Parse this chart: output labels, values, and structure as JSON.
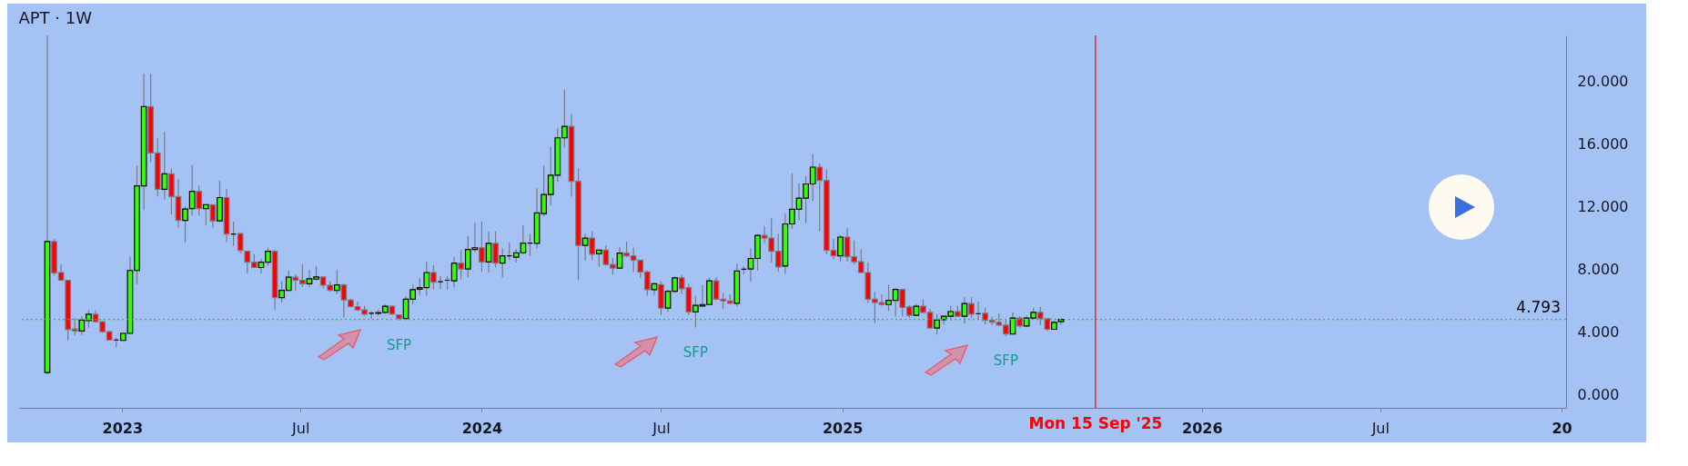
{
  "chart_data": {
    "type": "candlestick",
    "title": "APT · 1W",
    "x": [
      "2022-10-17",
      "2022-10-24",
      "2022-10-31",
      "2022-11-07",
      "2022-11-14",
      "2022-11-21",
      "2022-11-28",
      "2022-12-05",
      "2022-12-12",
      "2022-12-19",
      "2022-12-26",
      "2023-01-02",
      "2023-01-09",
      "2023-01-16",
      "2023-01-23",
      "2023-01-30",
      "2023-02-06",
      "2023-02-13",
      "2023-02-20",
      "2023-02-27",
      "2023-03-06",
      "2023-03-13",
      "2023-03-20",
      "2023-03-27",
      "2023-04-03",
      "2023-04-10",
      "2023-04-17",
      "2023-04-24",
      "2023-05-01",
      "2023-05-08",
      "2023-05-15",
      "2023-05-22",
      "2023-05-29",
      "2023-06-05",
      "2023-06-12",
      "2023-06-19",
      "2023-06-26",
      "2023-07-03",
      "2023-07-10",
      "2023-07-17",
      "2023-07-24",
      "2023-07-31",
      "2023-08-07",
      "2023-08-14",
      "2023-08-21",
      "2023-08-28",
      "2023-09-04",
      "2023-09-11",
      "2023-09-18",
      "2023-09-25",
      "2023-10-02",
      "2023-10-09",
      "2023-10-16",
      "2023-10-23",
      "2023-10-30",
      "2023-11-06",
      "2023-11-13",
      "2023-11-20",
      "2023-11-27",
      "2023-12-04",
      "2023-12-11",
      "2023-12-18",
      "2023-12-25",
      "2024-01-01",
      "2024-01-08",
      "2024-01-15",
      "2024-01-22",
      "2024-01-29",
      "2024-02-05",
      "2024-02-12",
      "2024-02-19",
      "2024-02-26",
      "2024-03-04",
      "2024-03-11",
      "2024-03-18",
      "2024-03-25",
      "2024-04-01",
      "2024-04-08",
      "2024-04-15",
      "2024-04-22",
      "2024-04-29",
      "2024-05-06",
      "2024-05-13",
      "2024-05-20",
      "2024-05-27",
      "2024-06-03",
      "2024-06-10",
      "2024-06-17",
      "2024-06-24",
      "2024-07-01",
      "2024-07-08",
      "2024-07-15",
      "2024-07-22",
      "2024-07-29",
      "2024-08-05",
      "2024-08-12",
      "2024-08-19",
      "2024-08-26",
      "2024-09-02",
      "2024-09-09",
      "2024-09-16",
      "2024-09-23",
      "2024-09-30",
      "2024-10-07",
      "2024-10-14",
      "2024-10-21",
      "2024-10-28",
      "2024-11-04",
      "2024-11-11",
      "2024-11-18",
      "2024-11-25",
      "2024-12-02",
      "2024-12-09",
      "2024-12-16",
      "2024-12-23",
      "2024-12-30",
      "2025-01-06",
      "2025-01-13",
      "2025-01-20",
      "2025-01-27",
      "2025-02-03",
      "2025-02-10",
      "2025-02-17",
      "2025-02-24",
      "2025-03-03",
      "2025-03-10",
      "2025-03-17",
      "2025-03-24",
      "2025-03-31",
      "2025-04-07",
      "2025-04-14",
      "2025-04-21",
      "2025-04-28",
      "2025-05-05",
      "2025-05-12",
      "2025-05-19",
      "2025-05-26",
      "2025-06-02",
      "2025-06-09",
      "2025-06-16",
      "2025-06-23",
      "2025-06-30",
      "2025-07-07",
      "2025-07-14",
      "2025-07-21",
      "2025-07-28",
      "2025-08-04",
      "2025-08-11"
    ],
    "ohlc": [
      [
        1.4,
        22.9,
        1.3,
        9.76
      ],
      [
        9.76,
        9.92,
        7.59,
        7.76
      ],
      [
        7.78,
        8.29,
        7.25,
        7.29
      ],
      [
        7.29,
        7.29,
        3.43,
        4.14
      ],
      [
        4.18,
        4.9,
        3.77,
        4.05
      ],
      [
        4.05,
        4.99,
        3.8,
        4.75
      ],
      [
        4.71,
        5.37,
        4.24,
        5.12
      ],
      [
        5.12,
        5.37,
        4.58,
        4.65
      ],
      [
        4.65,
        4.7,
        3.95,
        4.01
      ],
      [
        4.01,
        4.09,
        3.45,
        3.48
      ],
      [
        3.48,
        3.63,
        3.01,
        3.48
      ],
      [
        3.45,
        3.95,
        3.43,
        3.9
      ],
      [
        3.9,
        8.79,
        3.9,
        7.91
      ],
      [
        7.91,
        14.6,
        7.02,
        13.31
      ],
      [
        13.31,
        20.47,
        11.77,
        18.36
      ],
      [
        18.36,
        20.47,
        14.82,
        15.4
      ],
      [
        15.4,
        16.38,
        12.62,
        13.09
      ],
      [
        13.09,
        16.76,
        12.43,
        14.07
      ],
      [
        14.07,
        14.41,
        11.49,
        12.62
      ],
      [
        12.62,
        13.75,
        10.64,
        11.11
      ],
      [
        11.11,
        12,
        9.7,
        11.83
      ],
      [
        11.86,
        14.63,
        11.43,
        12.96
      ],
      [
        12.96,
        13.31,
        11.43,
        11.86
      ],
      [
        11.86,
        12.11,
        10.77,
        12.11
      ],
      [
        12.11,
        12.11,
        10.64,
        11.07
      ],
      [
        11.07,
        13.65,
        10.98,
        12.56
      ],
      [
        12.56,
        13.13,
        9.74,
        10.23
      ],
      [
        10.23,
        11.02,
        9.47,
        10.23
      ],
      [
        10.26,
        10.36,
        9,
        9.19
      ],
      [
        9.13,
        9.13,
        7.72,
        8.44
      ],
      [
        8.44,
        8.95,
        8.04,
        8.1
      ],
      [
        8.1,
        8.66,
        7.72,
        8.44
      ],
      [
        8.44,
        9.36,
        8.19,
        9.13
      ],
      [
        9.13,
        9.2,
        5.37,
        6.18
      ],
      [
        6.18,
        7.25,
        5.88,
        6.65
      ],
      [
        6.65,
        7.91,
        6.65,
        7.48
      ],
      [
        7.48,
        7.66,
        6.65,
        7.29
      ],
      [
        7.29,
        8.29,
        6.87,
        7.06
      ],
      [
        7.06,
        7.95,
        6.84,
        7.38
      ],
      [
        7.36,
        8.19,
        7.29,
        7.5
      ],
      [
        7.5,
        7.5,
        6.78,
        6.97
      ],
      [
        6.97,
        7.21,
        6.55,
        6.65
      ],
      [
        6.65,
        7.97,
        6.4,
        6.99
      ],
      [
        6.99,
        7.1,
        4.9,
        6.03
      ],
      [
        6.03,
        6.12,
        5.56,
        5.61
      ],
      [
        5.61,
        5.93,
        5.33,
        5.4
      ],
      [
        5.4,
        5.65,
        5.03,
        5.12
      ],
      [
        5.18,
        5.31,
        4.84,
        5.18
      ],
      [
        5.18,
        5.4,
        5.03,
        5.22
      ],
      [
        5.24,
        5.74,
        5.14,
        5.63
      ],
      [
        5.63,
        5.71,
        5.08,
        5.14
      ],
      [
        5.08,
        5.1,
        4.71,
        4.84
      ],
      [
        4.84,
        6.27,
        4.76,
        6.08
      ],
      [
        6.08,
        7.02,
        5.74,
        6.69
      ],
      [
        6.72,
        7.4,
        6.35,
        6.82
      ],
      [
        6.82,
        8.47,
        6.31,
        7.78
      ],
      [
        7.78,
        8.25,
        6.69,
        7.16
      ],
      [
        7.19,
        7.57,
        6.72,
        7.19
      ],
      [
        7.29,
        7.53,
        6.69,
        7.29
      ],
      [
        7.25,
        8.76,
        6.84,
        8.38
      ],
      [
        8.38,
        9.23,
        7.34,
        8
      ],
      [
        8,
        10.11,
        7.48,
        9.25
      ],
      [
        9.25,
        10.96,
        9.1,
        9.36
      ],
      [
        9.36,
        11.05,
        7.82,
        8.46
      ],
      [
        8.46,
        10.4,
        7.76,
        9.64
      ],
      [
        9.64,
        10.4,
        8.1,
        8.38
      ],
      [
        8.38,
        9.32,
        7.48,
        8.85
      ],
      [
        8.85,
        9.7,
        8.57,
        8.85
      ],
      [
        8.76,
        9.27,
        8.42,
        9.04
      ],
      [
        9.04,
        10.79,
        8.95,
        9.66
      ],
      [
        9.66,
        10.23,
        8.83,
        9.66
      ],
      [
        9.64,
        13.16,
        9.32,
        11.58
      ],
      [
        11.54,
        14.6,
        11.36,
        12.75
      ],
      [
        12.75,
        15.82,
        12.05,
        13.99
      ],
      [
        13.99,
        17.01,
        13.56,
        16.37
      ],
      [
        16.37,
        19.44,
        15.76,
        17.1
      ],
      [
        17.1,
        17.89,
        12.62,
        13.6
      ],
      [
        13.6,
        14.41,
        7.29,
        9.51
      ],
      [
        9.51,
        10.26,
        8.53,
        9.98
      ],
      [
        9.98,
        10.4,
        8.57,
        8.95
      ],
      [
        8.98,
        9.25,
        8.15,
        9.21
      ],
      [
        9.21,
        9.51,
        8.23,
        8.29
      ],
      [
        8.29,
        8.72,
        7.66,
        8.06
      ],
      [
        8.06,
        9.42,
        8,
        9.02
      ],
      [
        9.02,
        9.74,
        8.76,
        8.85
      ],
      [
        8.85,
        9.36,
        7.82,
        8.57
      ],
      [
        8.57,
        8.57,
        7.44,
        7.82
      ],
      [
        7.82,
        7.91,
        6.31,
        6.69
      ],
      [
        6.69,
        7.1,
        6.35,
        7.06
      ],
      [
        7.01,
        7.21,
        5.08,
        5.52
      ],
      [
        5.52,
        6.69,
        5.27,
        6.59
      ],
      [
        6.59,
        7.53,
        6.46,
        7.44
      ],
      [
        7.44,
        7.63,
        6.4,
        6.74
      ],
      [
        6.82,
        7.06,
        5.08,
        5.27
      ],
      [
        5.27,
        6.31,
        4.27,
        5.69
      ],
      [
        5.65,
        6.97,
        5.59,
        5.74
      ],
      [
        5.74,
        7.44,
        5.71,
        7.25
      ],
      [
        7.25,
        7.48,
        6.03,
        6.08
      ],
      [
        6.08,
        6.46,
        5.46,
        5.97
      ],
      [
        5.97,
        6.37,
        5.74,
        5.82
      ],
      [
        5.82,
        8.34,
        5.61,
        7.87
      ],
      [
        7.99,
        8.19,
        7.66,
        7.99
      ],
      [
        8,
        9.32,
        7.21,
        8.68
      ],
      [
        8.68,
        10.21,
        7.91,
        10.15
      ],
      [
        10.15,
        10.73,
        9.66,
        9.98
      ],
      [
        9.98,
        11.24,
        8.42,
        9.13
      ],
      [
        9.13,
        10.26,
        7.82,
        8.14
      ],
      [
        8.19,
        11.53,
        7.7,
        10.88
      ],
      [
        10.88,
        14.12,
        10.55,
        11.81
      ],
      [
        11.81,
        13.47,
        11.11,
        12.52
      ],
      [
        12.52,
        13.94,
        10.92,
        13.43
      ],
      [
        13.43,
        15.35,
        12.34,
        14.5
      ],
      [
        14.5,
        14.73,
        10.4,
        13.65
      ],
      [
        13.65,
        14.37,
        8.95,
        9.19
      ],
      [
        9.19,
        9.92,
        8.61,
        8.85
      ],
      [
        8.85,
        10.17,
        8.47,
        10.04
      ],
      [
        10.04,
        10.6,
        8.47,
        8.79
      ],
      [
        8.79,
        9.83,
        8.29,
        8.47
      ],
      [
        8.47,
        9.27,
        7.72,
        7.78
      ],
      [
        7.78,
        8.42,
        5.84,
        6.08
      ],
      [
        6.08,
        6.53,
        4.56,
        5.86
      ],
      [
        5.86,
        6.38,
        5.67,
        5.74
      ],
      [
        5.74,
        7.01,
        5.33,
        6.01
      ],
      [
        6.01,
        6.78,
        4.99,
        6.7
      ],
      [
        6.7,
        6.7,
        4.99,
        5.56
      ],
      [
        5.59,
        5.71,
        4.88,
        5.05
      ],
      [
        5.05,
        5.78,
        5.05,
        5.63
      ],
      [
        5.63,
        6.05,
        5.18,
        5.24
      ],
      [
        5.24,
        5.46,
        4.2,
        4.24
      ],
      [
        4.24,
        5.12,
        3.82,
        4.75
      ],
      [
        4.78,
        5.03,
        4.46,
        4.99
      ],
      [
        4.99,
        5.65,
        4.71,
        5.29
      ],
      [
        5.29,
        5.65,
        4.99,
        4.99
      ],
      [
        4.99,
        6.21,
        4.52,
        5.8
      ],
      [
        5.8,
        6.21,
        4.88,
        5.12
      ],
      [
        5.16,
        5.93,
        4.8,
        5.16
      ],
      [
        5.18,
        5.52,
        4.48,
        4.73
      ],
      [
        4.73,
        4.95,
        4.43,
        4.61
      ],
      [
        4.61,
        5.18,
        4.35,
        4.43
      ],
      [
        4.43,
        4.84,
        3.71,
        3.86
      ],
      [
        3.86,
        5.25,
        3.86,
        4.88
      ],
      [
        4.88,
        4.99,
        4.27,
        4.37
      ],
      [
        4.37,
        5.03,
        4.33,
        4.88
      ],
      [
        4.88,
        5.52,
        4.8,
        5.24
      ],
      [
        5.24,
        5.59,
        4.43,
        4.84
      ],
      [
        4.84,
        4.88,
        4.05,
        4.16
      ],
      [
        4.16,
        4.71,
        4.16,
        4.6
      ],
      [
        4.65,
        4.86,
        4.43,
        4.793
      ]
    ],
    "xlim": [
      "2022-09-23",
      "2027-01-01"
    ],
    "xticks": [
      {
        "value": "2023-01-01",
        "label": "2023"
      },
      {
        "value": "2023-07-01",
        "label": "Jul"
      },
      {
        "value": "2024-01-01",
        "label": "2024"
      },
      {
        "value": "2024-07-01",
        "label": "Jul"
      },
      {
        "value": "2025-01-01",
        "label": "2025"
      },
      {
        "value": "2026-01-01",
        "label": "2026"
      },
      {
        "value": "2026-07-01",
        "label": "Jul"
      },
      {
        "value": "2027-01-01",
        "label": "20"
      }
    ],
    "ylim": [
      -0.85,
      22.9
    ],
    "yticks": [
      {
        "value": 0,
        "label": "0.000"
      },
      {
        "value": 4,
        "label": "4.000"
      },
      {
        "value": 8,
        "label": "8.000"
      },
      {
        "value": 12,
        "label": "12.000"
      },
      {
        "value": 16,
        "label": "16.000"
      },
      {
        "value": 20,
        "label": "20.000"
      }
    ],
    "ref_lines": [
      {
        "axis": "y",
        "value": 4.793,
        "label": "4.793",
        "color": "#22cc00",
        "line_style": "dotted"
      },
      {
        "axis": "x",
        "value": "2025-09-15",
        "label": "Mon 15 Sep '25",
        "color": "#ff0000"
      }
    ],
    "annotations": [
      {
        "text": "SFP",
        "x": "2023-10-09",
        "y": 4.71
      },
      {
        "text": "SFP",
        "x": "2024-08-05",
        "y": 4.27
      },
      {
        "text": "SFP",
        "x": "2025-06-16",
        "y": 3.71
      }
    ]
  }
}
